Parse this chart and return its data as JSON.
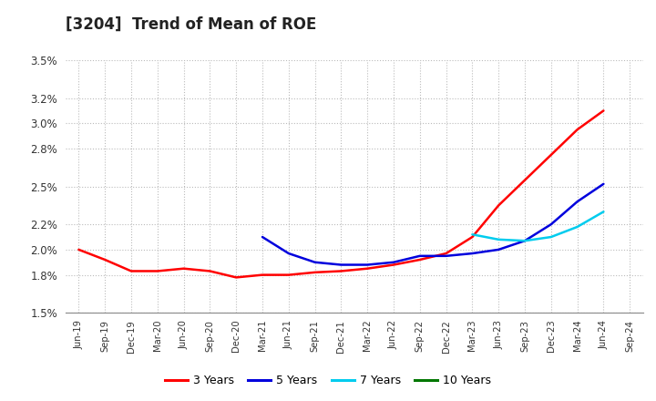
{
  "title": "[3204]  Trend of Mean of ROE",
  "ylim": [
    0.015,
    0.035
  ],
  "yticks": [
    0.015,
    0.018,
    0.02,
    0.022,
    0.025,
    0.028,
    0.03,
    0.032,
    0.035
  ],
  "ytick_labels": [
    "1.5%",
    "1.8%",
    "2.0%",
    "2.2%",
    "2.5%",
    "2.8%",
    "3.0%",
    "3.2%",
    "3.5%"
  ],
  "xtick_labels": [
    "Jun-19",
    "Sep-19",
    "Dec-19",
    "Mar-20",
    "Jun-20",
    "Sep-20",
    "Dec-20",
    "Mar-21",
    "Jun-21",
    "Sep-21",
    "Dec-21",
    "Mar-22",
    "Jun-22",
    "Sep-22",
    "Dec-22",
    "Mar-23",
    "Jun-23",
    "Sep-23",
    "Dec-23",
    "Mar-24",
    "Jun-24",
    "Sep-24"
  ],
  "legend_labels": [
    "3 Years",
    "5 Years",
    "7 Years",
    "10 Years"
  ],
  "legend_colors": [
    "#ff0000",
    "#0000dd",
    "#00ccee",
    "#007700"
  ],
  "background_color": "#ffffff",
  "grid_color": "#bbbbbb",
  "series_3y": [
    0.02,
    0.0192,
    0.0183,
    0.0183,
    0.0185,
    0.0183,
    0.0178,
    0.018,
    0.018,
    0.0182,
    0.0183,
    0.0185,
    0.0188,
    0.0192,
    0.0197,
    0.021,
    0.0235,
    0.0255,
    0.0275,
    0.0295,
    0.031,
    null
  ],
  "series_5y": [
    null,
    null,
    null,
    null,
    null,
    null,
    null,
    0.021,
    0.0197,
    0.019,
    0.0188,
    0.0188,
    0.019,
    0.0195,
    0.0195,
    0.0197,
    0.02,
    0.0207,
    0.022,
    0.0238,
    0.0252,
    null
  ],
  "series_7y": [
    null,
    null,
    null,
    null,
    null,
    null,
    null,
    null,
    null,
    null,
    null,
    null,
    null,
    null,
    null,
    0.0212,
    0.0208,
    0.0207,
    0.021,
    0.0218,
    0.023,
    null
  ],
  "series_10y": [
    null,
    null,
    null,
    null,
    null,
    null,
    null,
    null,
    null,
    null,
    null,
    null,
    null,
    null,
    null,
    null,
    null,
    null,
    null,
    null,
    null,
    null
  ]
}
